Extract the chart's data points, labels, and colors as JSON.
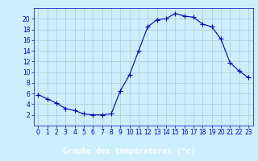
{
  "x": [
    0,
    1,
    2,
    3,
    4,
    5,
    6,
    7,
    8,
    9,
    10,
    11,
    12,
    13,
    14,
    15,
    16,
    17,
    18,
    19,
    20,
    21,
    22,
    23
  ],
  "y": [
    5.8,
    5.0,
    4.2,
    3.2,
    2.8,
    2.2,
    2.0,
    2.0,
    2.2,
    6.5,
    9.5,
    14.0,
    18.5,
    19.8,
    20.0,
    21.0,
    20.5,
    20.3,
    19.0,
    18.5,
    16.2,
    11.8,
    10.2,
    9.0
  ],
  "line_color": "#0000bb",
  "marker": "+",
  "marker_size": 4,
  "bg_color": "#cceeff",
  "grid_color": "#aacccc",
  "xlabel": "Graphe des températures (°c)",
  "xlabel_bg": "#3355bb",
  "xlabel_color": "#ffffff",
  "xlim": [
    -0.5,
    23.5
  ],
  "ylim": [
    0,
    22
  ],
  "yticks": [
    2,
    4,
    6,
    8,
    10,
    12,
    14,
    16,
    18,
    20
  ],
  "xticks": [
    0,
    1,
    2,
    3,
    4,
    5,
    6,
    7,
    8,
    9,
    10,
    11,
    12,
    13,
    14,
    15,
    16,
    17,
    18,
    19,
    20,
    21,
    22,
    23
  ],
  "tick_fontsize": 5.5,
  "xlabel_fontsize": 7.0
}
